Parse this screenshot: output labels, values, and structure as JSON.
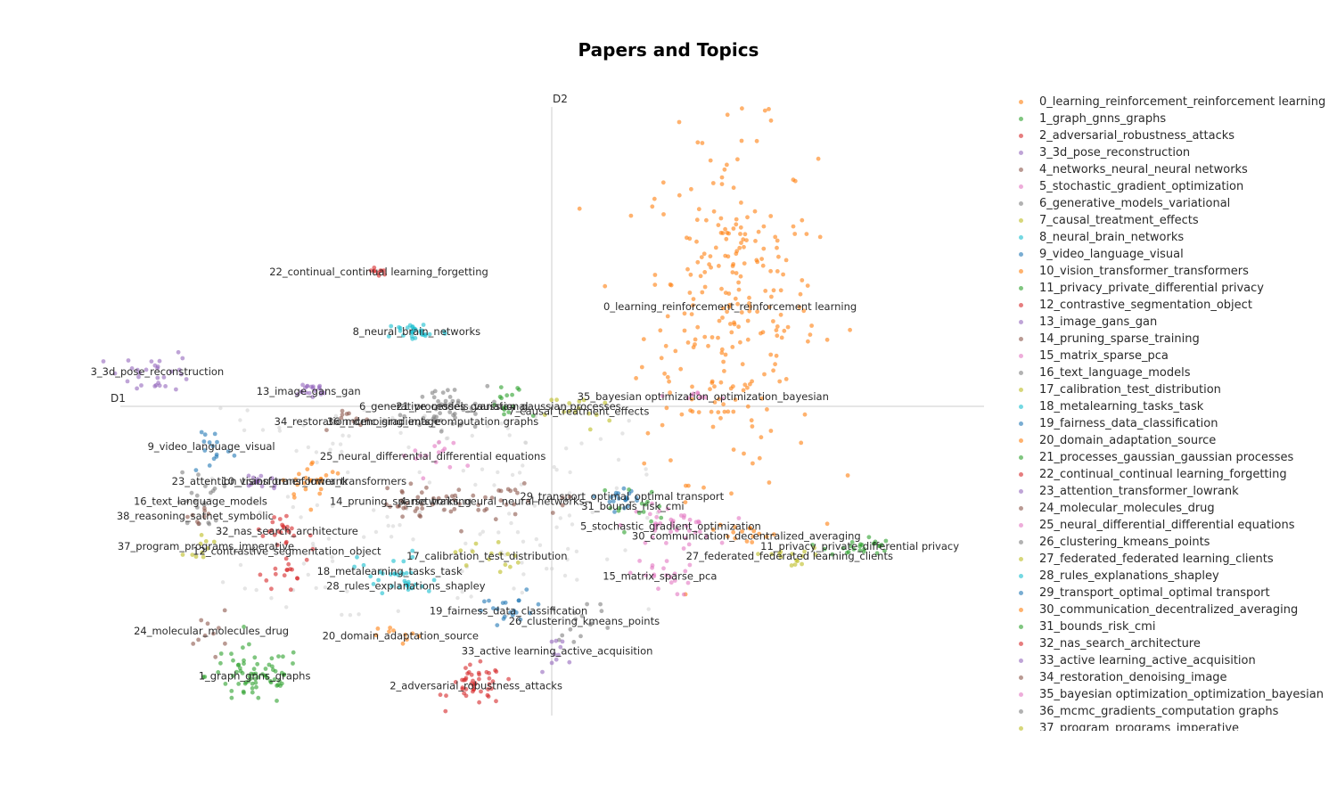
{
  "chart_data": {
    "type": "scatter",
    "title": "Papers and Topics",
    "xlabel": "D1",
    "ylabel": "D2",
    "xlim": [
      -8,
      8
    ],
    "ylim": [
      -6,
      6
    ],
    "grid": false,
    "legend_placement": "right",
    "background_point_color": "#CFCFCF",
    "topics": [
      {
        "name": "0_learning_reinforcement_reinforcement learning",
        "color": "#FF7F0E",
        "cx": 3.3,
        "cy": 2.0,
        "sx": 0.8,
        "sy": 1.7,
        "n": 260
      },
      {
        "name": "1_graph_gnns_graphs",
        "color": "#2CA02C",
        "cx": -5.5,
        "cy": -5.4,
        "sx": 0.45,
        "sy": 0.3,
        "n": 70
      },
      {
        "name": "2_adversarial_robustness_attacks",
        "color": "#D62728",
        "cx": -1.4,
        "cy": -5.6,
        "sx": 0.25,
        "sy": 0.2,
        "n": 45
      },
      {
        "name": "3_3d_pose_reconstruction",
        "color": "#9467BD",
        "cx": -7.3,
        "cy": 0.7,
        "sx": 0.35,
        "sy": 0.2,
        "n": 30
      },
      {
        "name": "4_networks_neural_neural networks",
        "color": "#8C564B",
        "cx": -1.1,
        "cy": -1.9,
        "sx": 1.0,
        "sy": 0.15,
        "n": 40
      },
      {
        "name": "5_stochastic_gradient_optimization",
        "color": "#E377C2",
        "cx": 2.2,
        "cy": -2.4,
        "sx": 0.4,
        "sy": 0.2,
        "n": 40
      },
      {
        "name": "6_generative_models_variational",
        "color": "#7F7F7F",
        "cx": -2.0,
        "cy": 0.0,
        "sx": 0.4,
        "sy": 0.2,
        "n": 30
      },
      {
        "name": "7_causal_treatment_effects",
        "color": "#BCBD22",
        "cx": 0.5,
        "cy": -0.1,
        "sx": 0.3,
        "sy": 0.2,
        "n": 15
      },
      {
        "name": "8_neural_brain_networks",
        "color": "#17BECF",
        "cx": -2.5,
        "cy": 1.5,
        "sx": 0.3,
        "sy": 0.1,
        "n": 30
      },
      {
        "name": "9_video_language_visual",
        "color": "#1F77B4",
        "cx": -6.3,
        "cy": -0.8,
        "sx": 0.2,
        "sy": 0.3,
        "n": 15
      },
      {
        "name": "10_vision_transformer_transformers",
        "color": "#FF7F0E",
        "cx": -4.4,
        "cy": -1.5,
        "sx": 0.3,
        "sy": 0.2,
        "n": 25
      },
      {
        "name": "11_privacy_private_differential privacy",
        "color": "#2CA02C",
        "cx": 5.7,
        "cy": -2.8,
        "sx": 0.3,
        "sy": 0.1,
        "n": 25
      },
      {
        "name": "12_contrastive_segmentation_object",
        "color": "#D62728",
        "cx": -4.9,
        "cy": -2.9,
        "sx": 0.2,
        "sy": 0.4,
        "n": 25
      },
      {
        "name": "13_image_gans_gan",
        "color": "#9467BD",
        "cx": -4.5,
        "cy": 0.3,
        "sx": 0.2,
        "sy": 0.1,
        "n": 20
      },
      {
        "name": "14_pruning_sparse_training",
        "color": "#8C564B",
        "cx": -2.8,
        "cy": -1.9,
        "sx": 0.3,
        "sy": 0.15,
        "n": 20
      },
      {
        "name": "15_matrix_sparse_pca",
        "color": "#E377C2",
        "cx": 2.0,
        "cy": -3.4,
        "sx": 0.3,
        "sy": 0.2,
        "n": 20
      },
      {
        "name": "16_text_language_models",
        "color": "#7F7F7F",
        "cx": -6.5,
        "cy": -1.9,
        "sx": 0.2,
        "sy": 0.3,
        "n": 20
      },
      {
        "name": "17_calibration_test_distribution",
        "color": "#BCBD22",
        "cx": -1.2,
        "cy": -3.0,
        "sx": 0.3,
        "sy": 0.2,
        "n": 15
      },
      {
        "name": "18_metalearning_tasks_task",
        "color": "#17BECF",
        "cx": -3.0,
        "cy": -3.3,
        "sx": 0.3,
        "sy": 0.2,
        "n": 20
      },
      {
        "name": "19_fairness_data_classification",
        "color": "#1F77B4",
        "cx": -0.8,
        "cy": -4.1,
        "sx": 0.4,
        "sy": 0.2,
        "n": 20
      },
      {
        "name": "20_domain_adaptation_source",
        "color": "#FF7F0E",
        "cx": -2.8,
        "cy": -4.6,
        "sx": 0.2,
        "sy": 0.1,
        "n": 10
      },
      {
        "name": "21_processes_gaussian_gaussian processes",
        "color": "#2CA02C",
        "cx": -0.8,
        "cy": 0.0,
        "sx": 0.2,
        "sy": 0.2,
        "n": 15
      },
      {
        "name": "22_continual_continual learning_forgetting",
        "color": "#D62728",
        "cx": -3.2,
        "cy": 2.7,
        "sx": 0.1,
        "sy": 0.05,
        "n": 10
      },
      {
        "name": "23_attention_transformer_lowrank",
        "color": "#9467BD",
        "cx": -5.4,
        "cy": -1.5,
        "sx": 0.2,
        "sy": 0.1,
        "n": 15
      },
      {
        "name": "24_molecular_molecules_drug",
        "color": "#8C564B",
        "cx": -6.3,
        "cy": -4.5,
        "sx": 0.15,
        "sy": 0.2,
        "n": 10
      },
      {
        "name": "25_neural_differential_differential equations",
        "color": "#E377C2",
        "cx": -2.2,
        "cy": -1.0,
        "sx": 0.3,
        "sy": 0.2,
        "n": 15
      },
      {
        "name": "26_clustering_kmeans_points",
        "color": "#7F7F7F",
        "cx": 0.6,
        "cy": -4.3,
        "sx": 0.3,
        "sy": 0.2,
        "n": 15
      },
      {
        "name": "27_federated_federated learning_clients",
        "color": "#BCBD22",
        "cx": 4.4,
        "cy": -3.0,
        "sx": 0.3,
        "sy": 0.1,
        "n": 15
      },
      {
        "name": "28_rules_explanations_shapley",
        "color": "#17BECF",
        "cx": -2.7,
        "cy": -3.6,
        "sx": 0.2,
        "sy": 0.1,
        "n": 15
      },
      {
        "name": "29_transport_optimal_optimal transport",
        "color": "#1F77B4",
        "cx": 1.3,
        "cy": -1.8,
        "sx": 0.3,
        "sy": 0.1,
        "n": 20
      },
      {
        "name": "30_communication_decentralized_averaging",
        "color": "#FF7F0E",
        "cx": 3.6,
        "cy": -2.6,
        "sx": 0.3,
        "sy": 0.1,
        "n": 15
      },
      {
        "name": "31_bounds_risk_cmi",
        "color": "#2CA02C",
        "cx": 1.5,
        "cy": -2.0,
        "sx": 0.3,
        "sy": 0.2,
        "n": 15
      },
      {
        "name": "32_nas_search_architecture",
        "color": "#D62728",
        "cx": -4.9,
        "cy": -2.5,
        "sx": 0.2,
        "sy": 0.2,
        "n": 15
      },
      {
        "name": "33_active learning_active_acquisition",
        "color": "#9467BD",
        "cx": 0.1,
        "cy": -4.9,
        "sx": 0.2,
        "sy": 0.15,
        "n": 10
      },
      {
        "name": "34_restoration_denoising_image",
        "color": "#8C564B",
        "cx": -3.6,
        "cy": -0.3,
        "sx": 0.2,
        "sy": 0.1,
        "n": 10
      },
      {
        "name": "35_bayesian optimization_optimization_bayesian",
        "color": "#E377C2",
        "cx": 2.8,
        "cy": 0.2,
        "sx": 0.2,
        "sy": 0.05,
        "n": 10
      },
      {
        "name": "36_mcmc_gradients_computation graphs",
        "color": "#7F7F7F",
        "cx": -2.2,
        "cy": -0.3,
        "sx": 0.3,
        "sy": 0.1,
        "n": 15
      },
      {
        "name": "37_program_programs_imperative",
        "color": "#BCBD22",
        "cx": -6.4,
        "cy": -2.8,
        "sx": 0.2,
        "sy": 0.1,
        "n": 10
      },
      {
        "name": "38_reasoning_satnet_symbolic",
        "color": "#8C564B",
        "cx": -6.6,
        "cy": -2.2,
        "sx": 0.15,
        "sy": 0.1,
        "n": 8
      }
    ]
  }
}
